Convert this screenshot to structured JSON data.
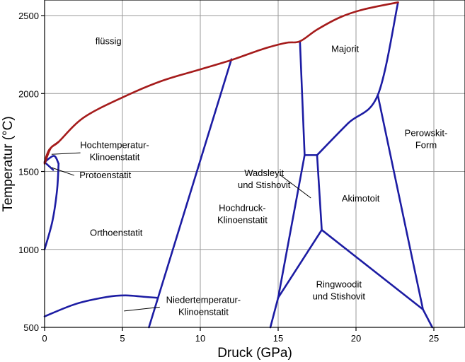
{
  "chart_data": {
    "type": "line",
    "xlabel": "Druck (GPa)",
    "ylabel": "Temperatur (°C)",
    "xlim": [
      0,
      27
    ],
    "ylim": [
      500,
      2600
    ],
    "x_ticks": [
      0,
      5,
      10,
      15,
      20,
      25
    ],
    "y_ticks": [
      500,
      1000,
      1500,
      2000,
      2500
    ],
    "grid": true,
    "melting_color": "#a51b1b",
    "boundary_color": "#1c1ca3",
    "melting_curve": [
      [
        0,
        1550
      ],
      [
        0.4,
        1650
      ],
      [
        0.9,
        1690
      ],
      [
        2.5,
        1845
      ],
      [
        5,
        1975
      ],
      [
        7.5,
        2080
      ],
      [
        10,
        2155
      ],
      [
        12,
        2215
      ],
      [
        14,
        2285
      ],
      [
        15.5,
        2325
      ],
      [
        16.4,
        2335
      ],
      [
        17.5,
        2410
      ],
      [
        19,
        2490
      ],
      [
        20.5,
        2540
      ],
      [
        22.7,
        2585
      ]
    ],
    "melting_loop": [
      [
        0,
        1560
      ],
      [
        0.3,
        1640
      ],
      [
        0.9,
        1690
      ]
    ],
    "phase_boundaries": [
      [
        [
          0,
          1560
        ],
        [
          0.6,
          1600
        ],
        [
          0.9,
          1550
        ]
      ],
      [
        [
          0,
          1560
        ],
        [
          0.55,
          1510
        ]
      ],
      [
        [
          0.9,
          1550
        ],
        [
          0.8,
          1380
        ],
        [
          0.5,
          1180
        ],
        [
          0,
          1000
        ]
      ],
      [
        [
          0,
          570
        ],
        [
          2,
          650
        ],
        [
          4,
          695
        ],
        [
          5.2,
          705
        ],
        [
          6.5,
          695
        ],
        [
          7.2,
          690
        ]
      ],
      [
        [
          6.7,
          500
        ],
        [
          12,
          2220
        ]
      ],
      [
        [
          14.5,
          500
        ],
        [
          15,
          690
        ],
        [
          16.7,
          1605
        ],
        [
          16.4,
          2335
        ]
      ],
      [
        [
          16.7,
          1605
        ],
        [
          17.5,
          1605
        ],
        [
          17.8,
          1125
        ],
        [
          15,
          690
        ]
      ],
      [
        [
          17.5,
          1605
        ],
        [
          19.5,
          1810
        ],
        [
          21.4,
          1990
        ],
        [
          22.7,
          2585
        ]
      ],
      [
        [
          17.8,
          1125
        ],
        [
          24.3,
          615
        ],
        [
          24.9,
          500
        ]
      ],
      [
        [
          21.4,
          1990
        ],
        [
          24.3,
          615
        ]
      ]
    ],
    "regions": [
      {
        "lines": [
          "flüssig"
        ],
        "x": 4.1,
        "y": 2340
      },
      {
        "lines": [
          "Majorit"
        ],
        "x": 19.3,
        "y": 2290
      },
      {
        "lines": [
          "Perowskit-",
          "Form"
        ],
        "x": 24.5,
        "y": 1710
      },
      {
        "lines": [
          "Hochtemperatur-",
          "Klinoenstatit"
        ],
        "x": 4.5,
        "y": 1635
      },
      {
        "lines": [
          "Protoenstatit"
        ],
        "x": 3.9,
        "y": 1480
      },
      {
        "lines": [
          "Wadsleyit",
          "und Stishovit"
        ],
        "x": 14.1,
        "y": 1455
      },
      {
        "lines": [
          "Akimotoit"
        ],
        "x": 20.3,
        "y": 1330
      },
      {
        "lines": [
          "Hochdruck-",
          "Klinoenstatit"
        ],
        "x": 12.7,
        "y": 1230
      },
      {
        "lines": [
          "Orthoenstatit"
        ],
        "x": 4.6,
        "y": 1110
      },
      {
        "lines": [
          "Ringwoodit",
          "und Stishovit"
        ],
        "x": 18.9,
        "y": 740
      },
      {
        "lines": [
          "Niedertemperatur-",
          "Klinoenstatit"
        ],
        "x": 10.2,
        "y": 640
      }
    ],
    "leaders": [
      [
        [
          0.45,
          1610
        ],
        [
          2.3,
          1620
        ]
      ],
      [
        [
          0.45,
          1525
        ],
        [
          1.9,
          1475
        ]
      ],
      [
        [
          15.1,
          1480
        ],
        [
          17.1,
          1330
        ]
      ],
      [
        [
          5.1,
          605
        ],
        [
          7.4,
          630
        ]
      ]
    ]
  }
}
